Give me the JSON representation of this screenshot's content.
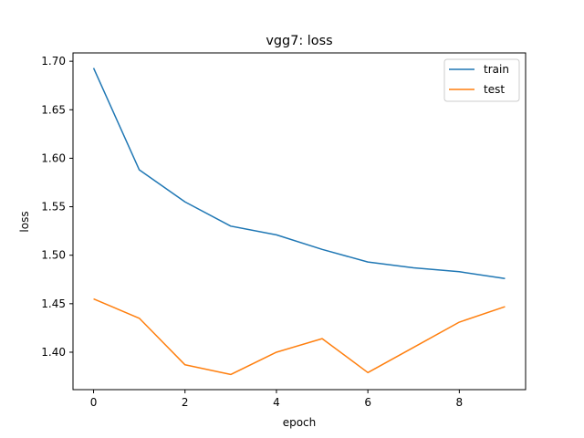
{
  "chart_data": {
    "type": "line",
    "title": "vgg7: loss",
    "xlabel": "epoch",
    "ylabel": "loss",
    "x": [
      0,
      1,
      2,
      3,
      4,
      5,
      6,
      7,
      8,
      9
    ],
    "series": [
      {
        "name": "train",
        "color": "#1f77b4",
        "values": [
          1.693,
          1.588,
          1.555,
          1.53,
          1.521,
          1.506,
          1.493,
          1.487,
          1.483,
          1.476
        ]
      },
      {
        "name": "test",
        "color": "#ff7f0e",
        "values": [
          1.455,
          1.435,
          1.387,
          1.377,
          1.4,
          1.414,
          1.379,
          1.405,
          1.431,
          1.447
        ]
      }
    ],
    "xlim": [
      -0.45,
      9.45
    ],
    "ylim": [
      1.3614,
      1.7086
    ],
    "xticks": [
      0,
      2,
      4,
      6,
      8
    ],
    "xtick_labels": [
      "0",
      "2",
      "4",
      "6",
      "8"
    ],
    "yticks": [
      1.4,
      1.45,
      1.5,
      1.55,
      1.6,
      1.65,
      1.7
    ],
    "ytick_labels": [
      "1.40",
      "1.45",
      "1.50",
      "1.55",
      "1.60",
      "1.65",
      "1.70"
    ],
    "grid": false,
    "legend_position": "top-right"
  }
}
